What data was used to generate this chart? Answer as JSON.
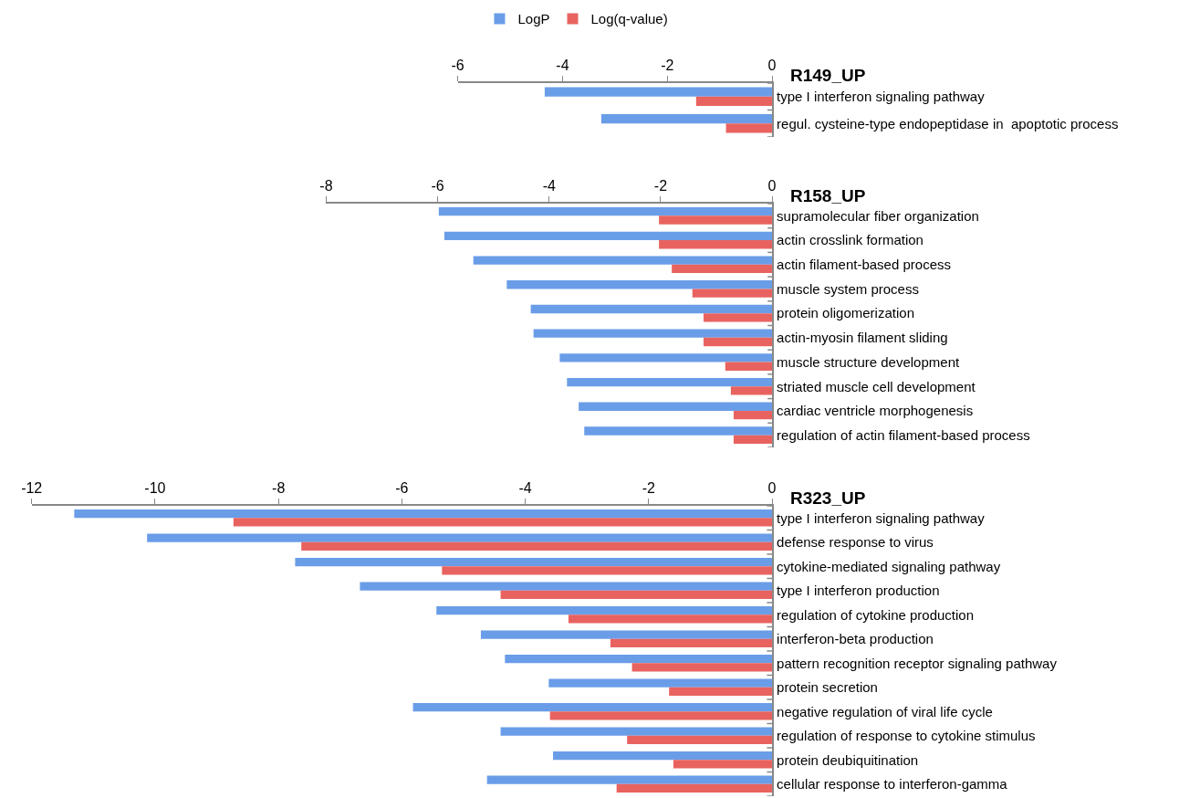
{
  "chart_data": [
    {
      "type": "bar",
      "orientation": "horizontal",
      "title": "R149_UP",
      "legend": "top",
      "grid": false,
      "categories": [
        "type I interferon signaling pathway",
        "regul. cysteine-type endopeptidase in  apoptotic process"
      ],
      "series": [
        {
          "name": "LogP",
          "color": "#6a9de8",
          "values": [
            -4.34,
            -3.26
          ]
        },
        {
          "name": "Log(q-value)",
          "color": "#e8635f",
          "values": [
            -1.45,
            -0.88
          ]
        }
      ],
      "xlim": [
        -6,
        0
      ],
      "xticks": [
        -6,
        -4,
        -2,
        0
      ]
    },
    {
      "type": "bar",
      "orientation": "horizontal",
      "title": "R158_UP",
      "grid": false,
      "categories": [
        "supramolecular fiber organization",
        "actin crosslink formation",
        "actin filament-based process",
        "muscle system process",
        "protein oligomerization",
        "actin-myosin filament sliding",
        "muscle structure development",
        "striated muscle cell development",
        "cardiac ventricle morphogenesis",
        "regulation of actin filament-based process"
      ],
      "series": [
        {
          "color": "#6a9de8",
          "values": [
            -5.98,
            -5.88,
            -5.36,
            -4.76,
            -4.33,
            -4.28,
            -3.81,
            -3.68,
            -3.47,
            -3.37
          ]
        },
        {
          "color": "#e8635f",
          "values": [
            -2.03,
            -2.03,
            -1.8,
            -1.43,
            -1.23,
            -1.23,
            -0.84,
            -0.74,
            -0.69,
            -0.69
          ]
        }
      ],
      "xlim": [
        -8,
        0
      ],
      "xticks": [
        -8,
        -6,
        -4,
        -2,
        0
      ]
    },
    {
      "type": "bar",
      "orientation": "horizontal",
      "title": "R323_UP",
      "grid": false,
      "categories": [
        "type I interferon signaling pathway",
        "defense response to virus",
        "cytokine-mediated signaling pathway",
        "type I interferon production",
        "regulation of cytokine production",
        "interferon-beta production",
        "pattern recognition receptor signaling pathway",
        "protein secretion",
        "negative regulation of viral life cycle",
        "regulation of response to cytokine stimulus",
        "protein deubiquitination",
        "cellular response to interferon-gamma"
      ],
      "series": [
        {
          "color": "#6a9de8",
          "values": [
            -11.31,
            -10.13,
            -7.73,
            -6.68,
            -5.44,
            -4.72,
            -4.33,
            -3.62,
            -5.82,
            -4.4,
            -3.55,
            -4.62
          ]
        },
        {
          "color": "#e8635f",
          "values": [
            -8.73,
            -7.63,
            -5.35,
            -4.4,
            -3.3,
            -2.62,
            -2.27,
            -1.67,
            -3.6,
            -2.35,
            -1.6,
            -2.52
          ]
        }
      ],
      "xlim": [
        -12,
        0
      ],
      "xticks": [
        -12,
        -10,
        -8,
        -6,
        -4,
        -2,
        0
      ]
    }
  ]
}
